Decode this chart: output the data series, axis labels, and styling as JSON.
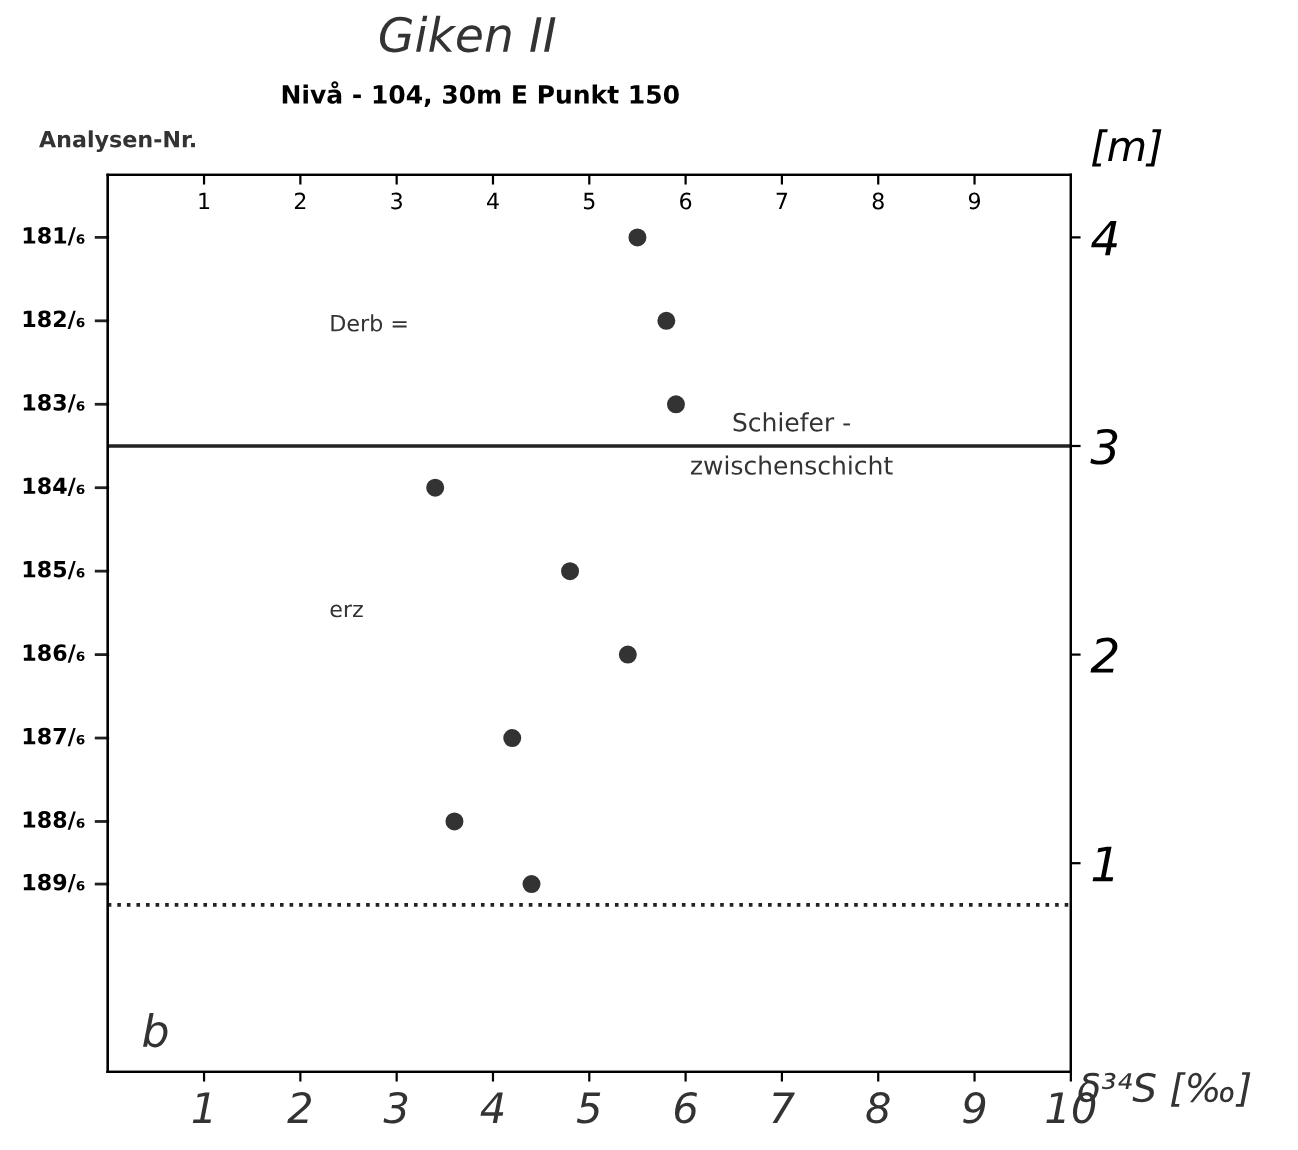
{
  "chart_data": {
    "type": "scatter",
    "title": "Giken II",
    "subtitle": "Nivå - 104, 30m E Punkt 150",
    "ylabel": "[m]",
    "xlabel": "δ³⁴S [‰]",
    "x": [
      5.5,
      5.8,
      5.9,
      3.4,
      4.8,
      5.4,
      4.2,
      3.6,
      4.4
    ],
    "series": [
      {
        "color": "#333333",
        "values": [
          4.0,
          3.6,
          3.2,
          2.8,
          2.4,
          2.0,
          1.6,
          1.2,
          0.9
        ]
      }
    ],
    "marker": "circle",
    "grid": false,
    "legend": false,
    "xlim": [
      0,
      10
    ],
    "xticks": [
      1,
      2,
      3,
      4,
      5,
      6,
      7,
      8,
      9,
      10
    ],
    "x2lim": [
      0,
      10
    ],
    "x2ticks": [
      1,
      2,
      3,
      4,
      5,
      6,
      7,
      8,
      9
    ],
    "ylim": [
      0,
      4.3
    ],
    "yticks": [
      1,
      2,
      3,
      4
    ],
    "ref_lines": [
      {
        "axis": "y",
        "value": 3.0,
        "label": "Schiefer -\nzwischenschicht",
        "color": "#222222",
        "line_style": "solid"
      },
      {
        "axis": "y",
        "value": 0.8,
        "label": null,
        "color": "#222222",
        "line_style": "dotted"
      }
    ],
    "annotations": [
      "Analysen-Nr.",
      "181/₆",
      "182/₆",
      "183/₆",
      "184/₆",
      "185/₆",
      "186/₆",
      "187/₆",
      "188/₆",
      "189/₆",
      "Derb =",
      "erz",
      "b"
    ]
  }
}
